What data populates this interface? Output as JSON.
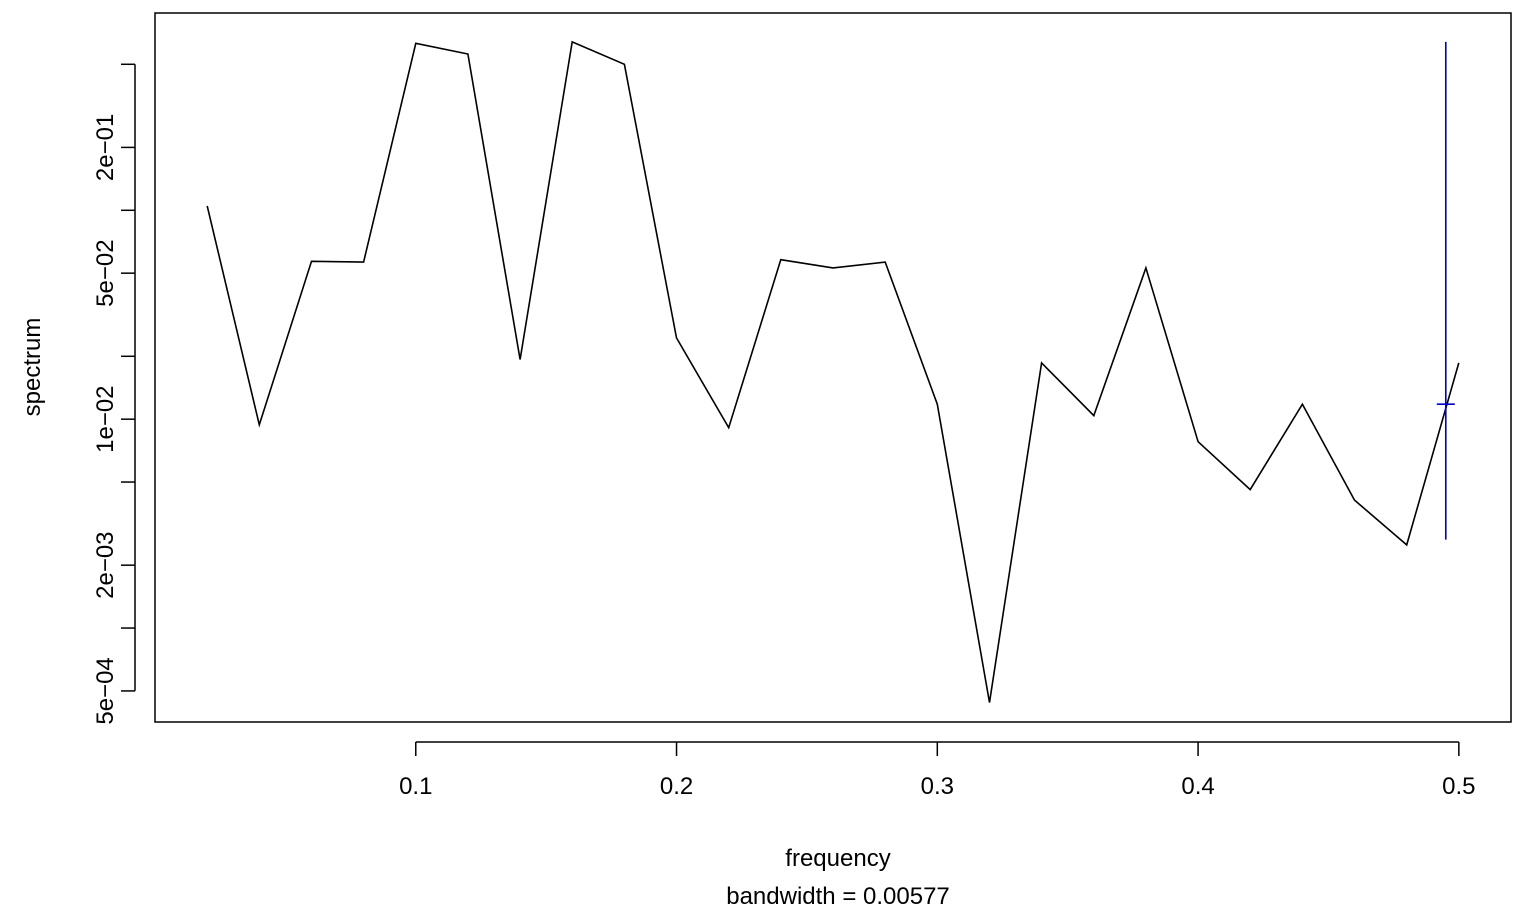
{
  "chart_data": {
    "type": "line",
    "xlabel": "frequency",
    "sub": "bandwidth = 0.00577",
    "ylabel": "spectrum",
    "ylog": true,
    "xlim": [
      0.0,
      0.52
    ],
    "ylim": [
      0.000355,
      0.88
    ],
    "x_ticks": [
      {
        "value": 0.1,
        "label": "0.1"
      },
      {
        "value": 0.2,
        "label": "0.2"
      },
      {
        "value": 0.3,
        "label": "0.3"
      },
      {
        "value": 0.4,
        "label": "0.4"
      },
      {
        "value": 0.5,
        "label": "0.5"
      }
    ],
    "y_ticks": [
      {
        "value": 0.0005,
        "label": "5e−04"
      },
      {
        "value": 0.001,
        "label": ""
      },
      {
        "value": 0.002,
        "label": "2e−03"
      },
      {
        "value": 0.005,
        "label": ""
      },
      {
        "value": 0.01,
        "label": "1e−02"
      },
      {
        "value": 0.02,
        "label": ""
      },
      {
        "value": 0.05,
        "label": "5e−02"
      },
      {
        "value": 0.1,
        "label": ""
      },
      {
        "value": 0.2,
        "label": "2e−01"
      },
      {
        "value": 0.5,
        "label": ""
      }
    ],
    "series": [
      {
        "color": "#000000",
        "x": [
          0.02,
          0.04,
          0.06,
          0.08,
          0.1,
          0.12,
          0.14,
          0.16,
          0.18,
          0.2,
          0.22,
          0.24,
          0.26,
          0.28,
          0.3,
          0.32,
          0.34,
          0.36,
          0.38,
          0.4,
          0.42,
          0.44,
          0.46,
          0.48,
          0.5
        ],
        "y": [
          0.105,
          0.0094,
          0.057,
          0.0565,
          0.63,
          0.56,
          0.0193,
          0.64,
          0.5,
          0.0245,
          0.0091,
          0.058,
          0.053,
          0.0565,
          0.0118,
          0.00044,
          0.0186,
          0.0104,
          0.053,
          0.0078,
          0.0046,
          0.0118,
          0.0041,
          0.0025,
          0.0186
        ]
      }
    ],
    "ci_bar": {
      "color": "#0000cd",
      "x": 0.495,
      "y_center": 0.0118,
      "y_low": 0.00265,
      "y_high": 0.64
    }
  }
}
